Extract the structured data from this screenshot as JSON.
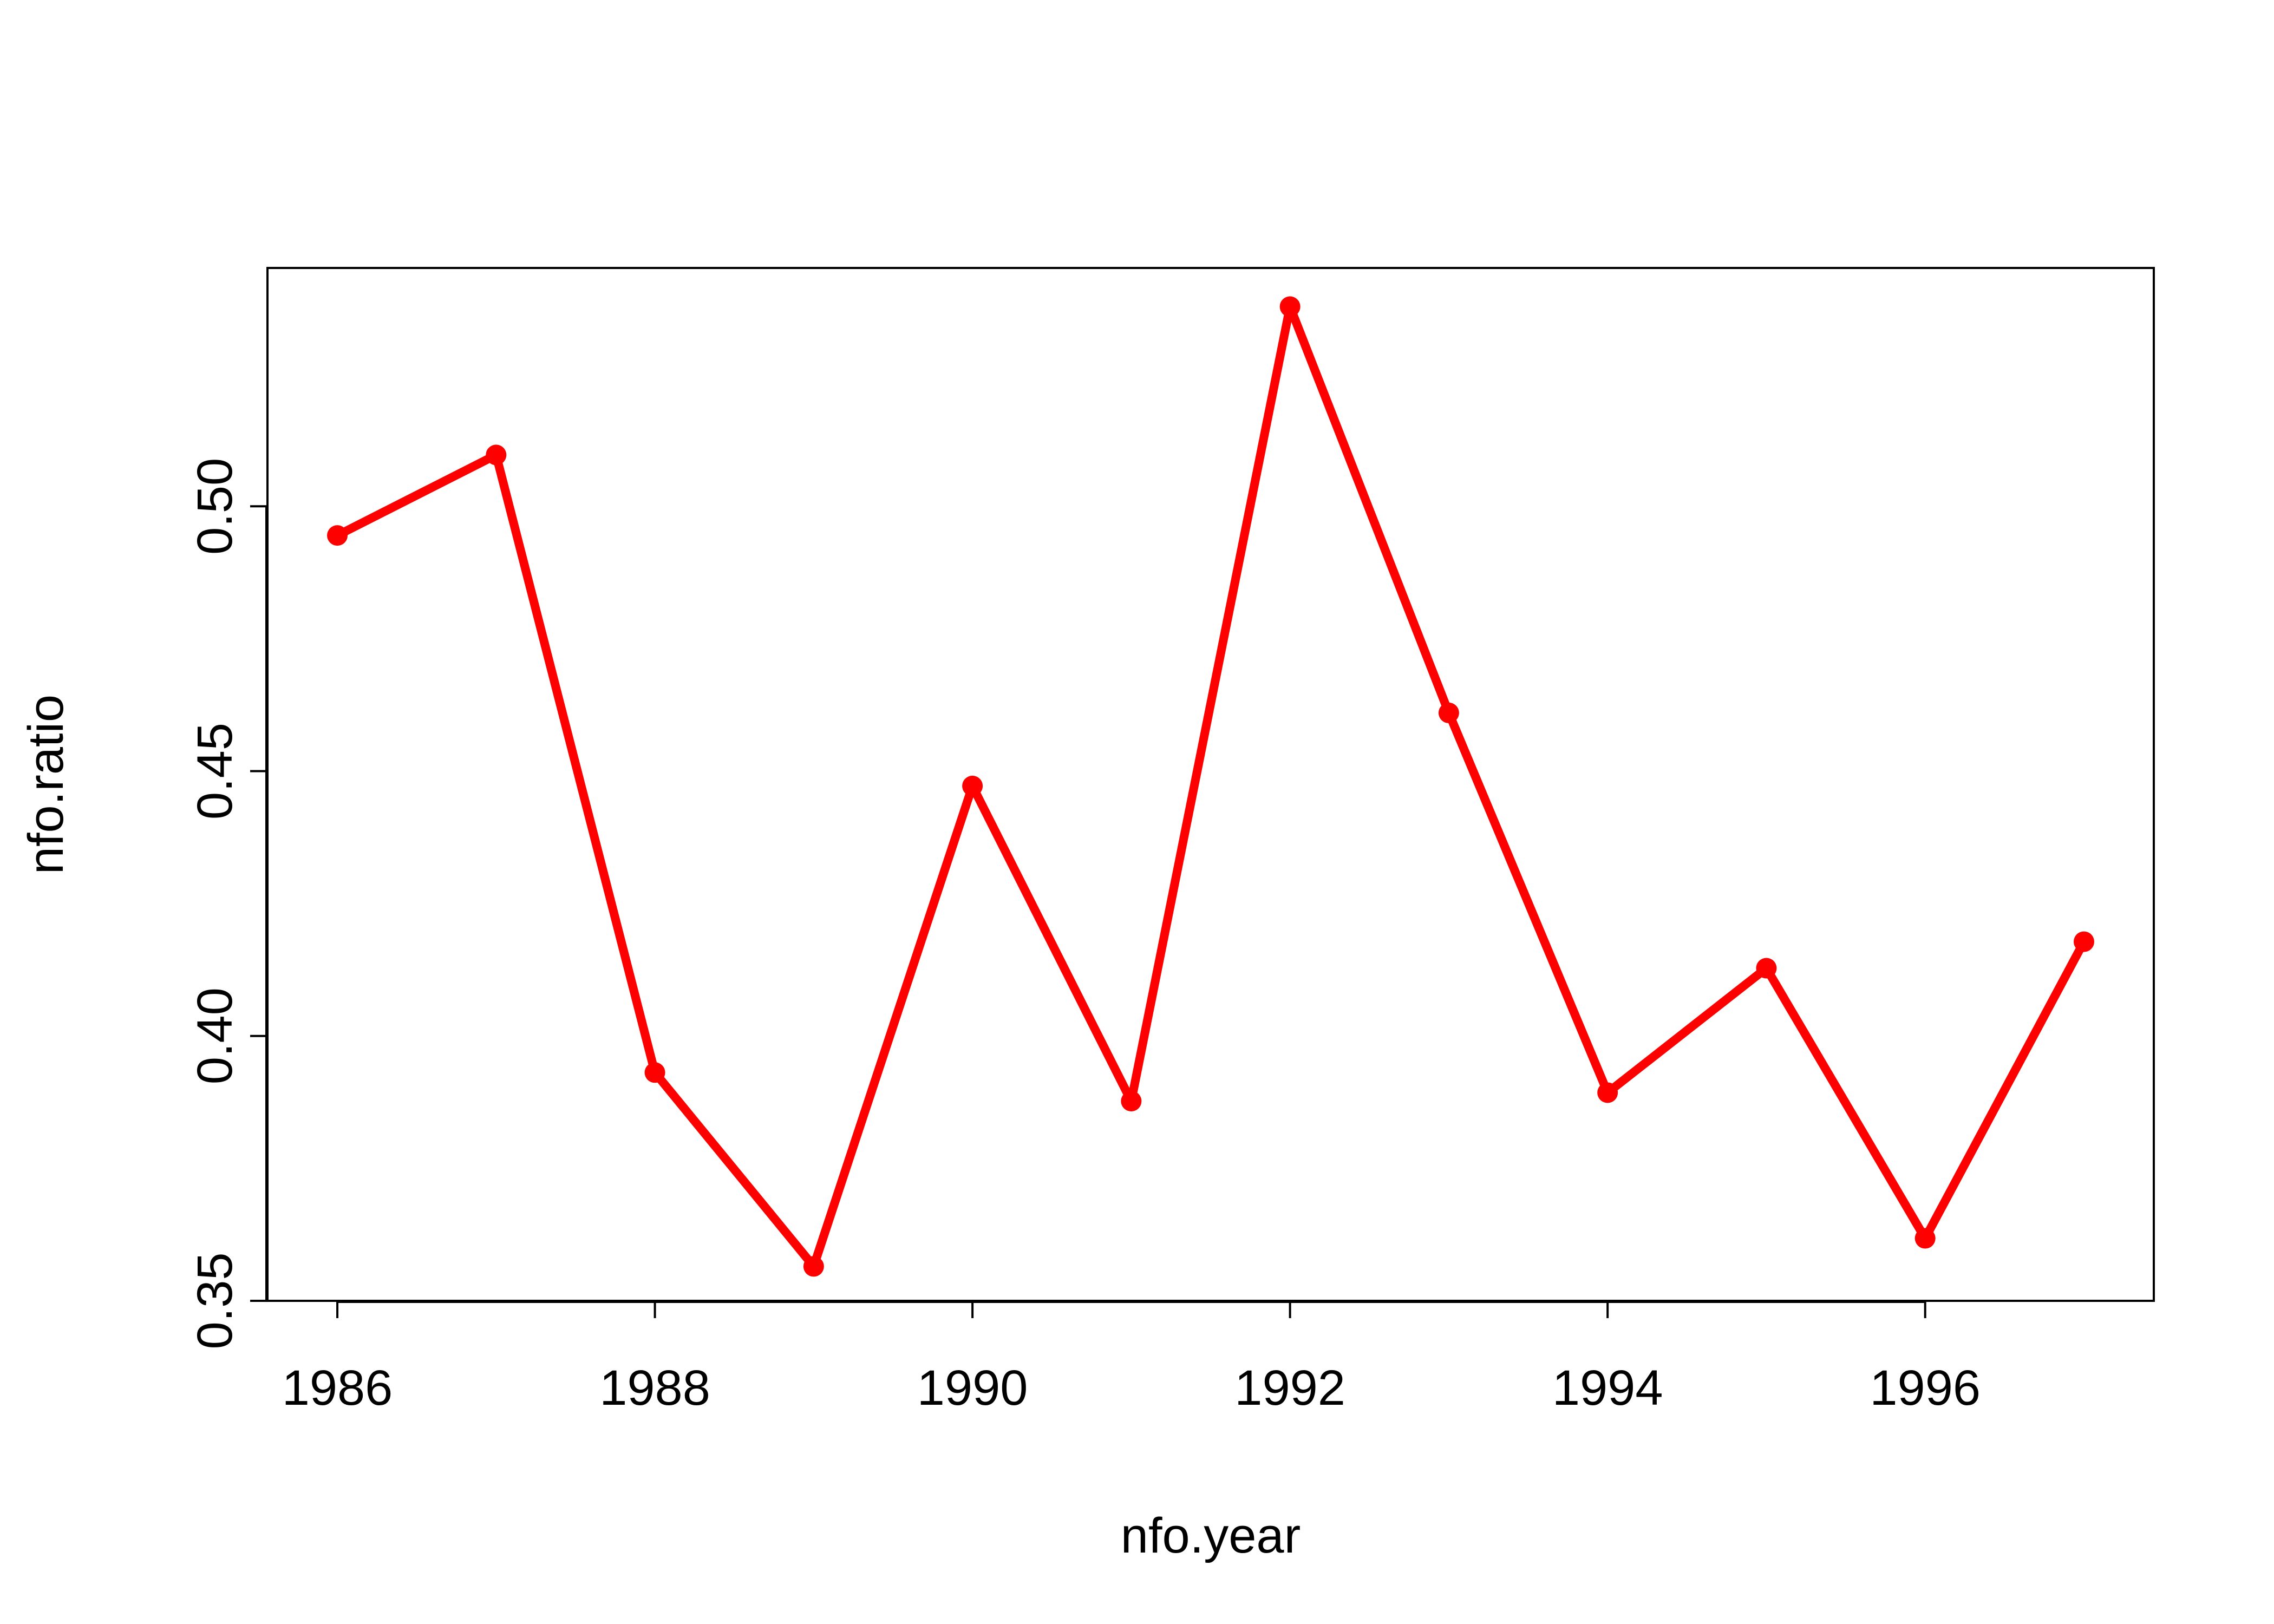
{
  "chart_data": {
    "type": "line",
    "title": "",
    "xlabel": "nfo.year",
    "ylabel": "nfo.ratio",
    "x": [
      1986,
      1987,
      1988,
      1989,
      1990,
      1991,
      1992,
      1993,
      1994,
      1995,
      1996,
      1997
    ],
    "series": [
      {
        "values": [
          0.4945,
          0.5097,
          0.3931,
          0.3565,
          0.4472,
          0.3877,
          0.5377,
          0.461,
          0.3893,
          0.4128,
          0.3618,
          0.4178
        ],
        "color": "#ff0000"
      }
    ],
    "xlim": [
      1985.56,
      1997.44
    ],
    "ylim": [
      0.35,
      0.545
    ],
    "x_ticks": [
      1986,
      1988,
      1990,
      1992,
      1994,
      1996
    ],
    "x_tick_labels": [
      "1986",
      "1988",
      "1990",
      "1992",
      "1994",
      "1996"
    ],
    "y_ticks": [
      0.35,
      0.4,
      0.45,
      0.5
    ],
    "y_tick_labels": [
      "0.35",
      "0.40",
      "0.45",
      "0.50"
    ],
    "grid": false,
    "legend": "none",
    "markers": "filled-circle"
  }
}
